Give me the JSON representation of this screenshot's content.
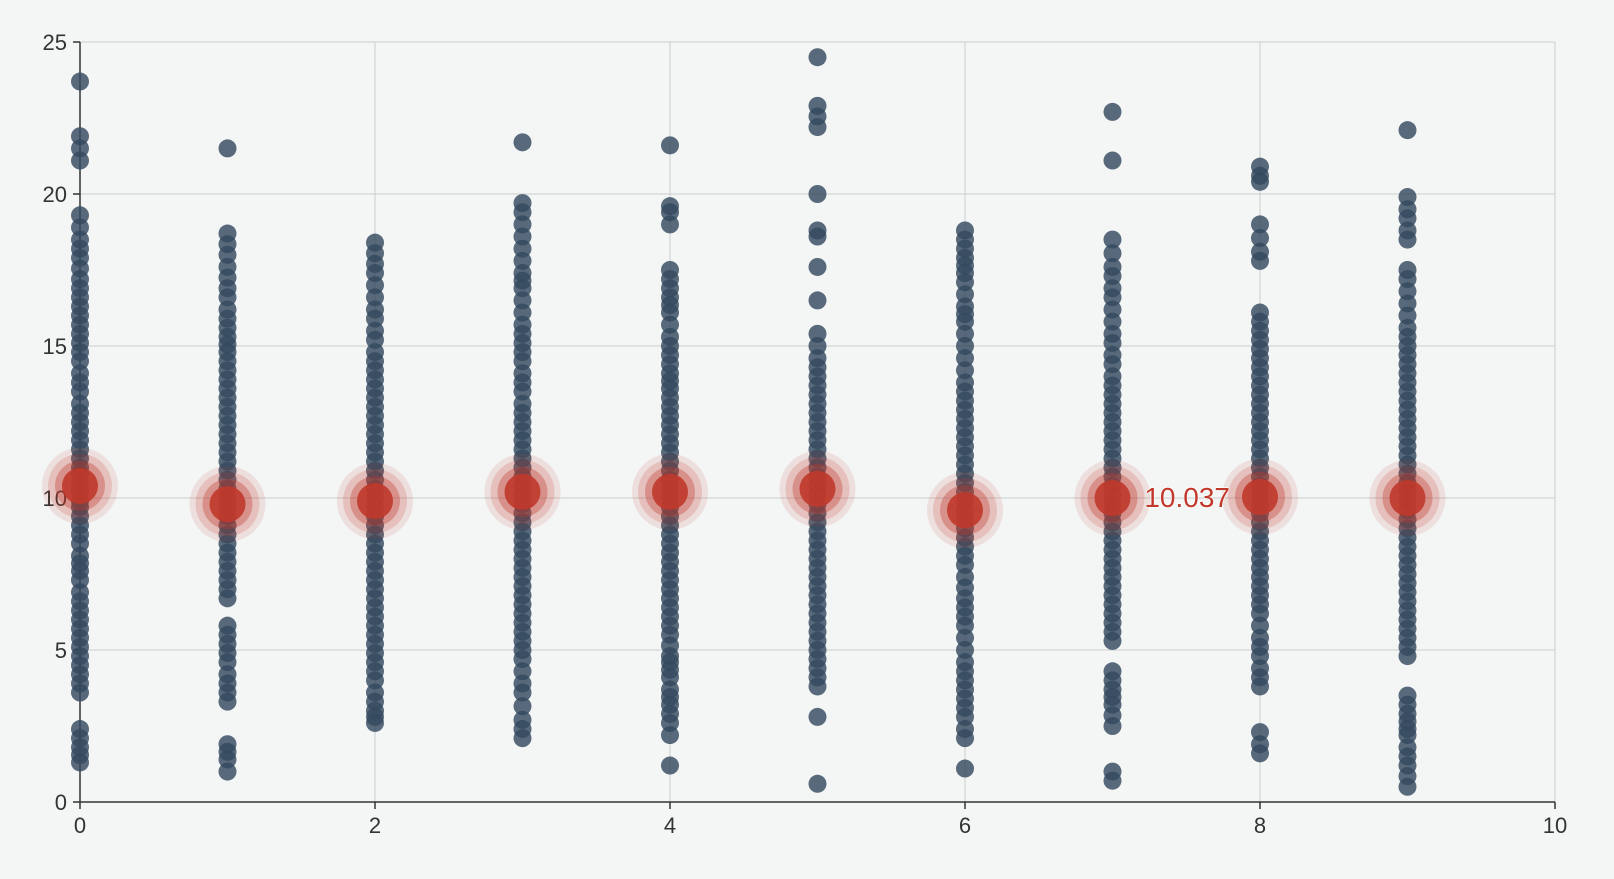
{
  "chart_data": {
    "type": "scatter",
    "title": "",
    "xlabel": "",
    "ylabel": "",
    "xlim": [
      0,
      10
    ],
    "ylim": [
      0,
      25
    ],
    "x_ticks": [
      "0",
      "2",
      "4",
      "6",
      "8",
      "10"
    ],
    "y_ticks": [
      "0",
      "5",
      "10",
      "15",
      "20",
      "25"
    ],
    "grid": true,
    "colors": {
      "points": "#34495e",
      "mean": "#c0392b",
      "grid": "#cccccc",
      "axis": "#333333",
      "background": "#f4f6f6"
    },
    "series": [
      {
        "type": "scatter",
        "x_categories": [
          0,
          1,
          2,
          3,
          4,
          5,
          6,
          7,
          8,
          9
        ],
        "y_values_per_x": [
          [
            23.7,
            21.9,
            21.1,
            19.3,
            18.5,
            17.9,
            17.2,
            16.6,
            16.3,
            16.0,
            15.7,
            15.4,
            14.8,
            14.5,
            14.1,
            13.8,
            13.5,
            13.1,
            12.8,
            12.5,
            12.2,
            11.9,
            11.6,
            11.3,
            11.0,
            10.8,
            10.5,
            10.2,
            9.9,
            9.7,
            9.4,
            9.1,
            8.8,
            8.5,
            8.1,
            7.6,
            7.3,
            6.9,
            6.6,
            6.3,
            6.0,
            5.7,
            5.4,
            5.1,
            4.8,
            4.5,
            4.2,
            3.9,
            3.6,
            2.4,
            1.8,
            1.3
          ],
          [
            21.5,
            18.7,
            18.0,
            17.6,
            16.9,
            16.6,
            16.2,
            15.6,
            15.3,
            14.8,
            14.5,
            14.2,
            13.9,
            13.6,
            13.3,
            13.0,
            12.7,
            12.4,
            12.1,
            11.8,
            11.5,
            11.2,
            10.9,
            10.6,
            10.3,
            10.0,
            9.7,
            9.4,
            9.1,
            8.8,
            8.5,
            8.2,
            7.9,
            7.6,
            7.3,
            7.0,
            6.7,
            5.8,
            5.5,
            5.2,
            4.9,
            4.6,
            4.2,
            3.9,
            3.6,
            3.3,
            1.9,
            1.4,
            1.0
          ],
          [
            18.4,
            17.7,
            17.4,
            17.0,
            16.6,
            16.2,
            15.9,
            15.5,
            15.2,
            14.8,
            14.5,
            14.2,
            13.9,
            13.6,
            13.3,
            13.0,
            12.7,
            12.4,
            12.1,
            11.8,
            11.5,
            11.2,
            10.9,
            10.6,
            10.3,
            10.0,
            9.7,
            9.4,
            9.1,
            8.8,
            8.5,
            8.2,
            7.9,
            7.6,
            7.3,
            7.0,
            6.7,
            6.4,
            6.1,
            5.8,
            5.5,
            5.2,
            4.9,
            4.6,
            4.3,
            4.0,
            3.6,
            3.0,
            2.8,
            2.6
          ],
          [
            21.7,
            19.7,
            19.4,
            18.6,
            18.2,
            17.8,
            17.4,
            16.9,
            16.5,
            16.1,
            15.7,
            15.4,
            15.1,
            14.8,
            14.5,
            14.1,
            13.8,
            13.5,
            13.1,
            12.8,
            12.5,
            12.2,
            11.9,
            11.6,
            11.3,
            11.0,
            10.7,
            10.4,
            10.1,
            9.8,
            9.5,
            9.2,
            8.9,
            8.6,
            8.3,
            8.0,
            7.7,
            7.4,
            7.1,
            6.8,
            6.5,
            6.2,
            5.9,
            5.6,
            5.3,
            5.0,
            4.7,
            3.9,
            3.6,
            2.7,
            2.4,
            2.1
          ],
          [
            21.6,
            19.6,
            19.4,
            19.0,
            17.5,
            17.2,
            16.9,
            16.6,
            16.1,
            15.7,
            15.3,
            15.0,
            14.7,
            14.4,
            14.1,
            13.6,
            13.3,
            13.0,
            12.7,
            12.4,
            12.1,
            11.8,
            11.5,
            11.2,
            10.9,
            10.6,
            10.3,
            10.0,
            9.7,
            9.4,
            9.1,
            8.8,
            8.5,
            8.2,
            7.9,
            7.6,
            7.3,
            7.0,
            6.7,
            6.4,
            6.1,
            5.8,
            5.5,
            4.8,
            4.6,
            4.1,
            3.7,
            3.2,
            2.6,
            2.2,
            1.2
          ],
          [
            24.5,
            22.9,
            22.2,
            20.0,
            18.8,
            18.6,
            17.6,
            16.5,
            15.4,
            15.0,
            14.6,
            14.3,
            14.0,
            13.7,
            13.4,
            13.1,
            12.8,
            12.5,
            12.2,
            11.9,
            11.6,
            11.3,
            11.0,
            10.7,
            10.4,
            10.1,
            9.8,
            9.5,
            9.2,
            8.9,
            8.6,
            8.3,
            8.0,
            7.7,
            7.4,
            7.1,
            6.8,
            6.5,
            6.2,
            5.9,
            5.6,
            5.3,
            5.0,
            4.7,
            4.4,
            4.1,
            3.8,
            2.8,
            0.6
          ],
          [
            18.8,
            18.5,
            18.2,
            17.9,
            17.4,
            17.1,
            16.7,
            16.3,
            15.8,
            15.4,
            15.0,
            14.6,
            14.2,
            13.8,
            13.5,
            13.2,
            12.9,
            12.6,
            12.3,
            12.0,
            11.7,
            11.4,
            11.1,
            10.8,
            10.5,
            10.2,
            9.9,
            9.6,
            9.3,
            9.0,
            8.7,
            8.4,
            7.8,
            7.4,
            6.7,
            6.4,
            6.1,
            5.8,
            5.4,
            5.0,
            4.6,
            4.3,
            4.0,
            3.7,
            3.4,
            3.1,
            2.8,
            2.4,
            2.1,
            1.1
          ],
          [
            22.7,
            21.1,
            18.5,
            17.6,
            17.3,
            16.9,
            16.6,
            16.2,
            15.8,
            15.4,
            15.1,
            14.7,
            14.4,
            14.0,
            13.7,
            13.4,
            13.1,
            12.8,
            12.5,
            12.2,
            11.9,
            11.6,
            11.3,
            11.0,
            10.7,
            10.4,
            10.1,
            9.8,
            9.5,
            9.2,
            8.9,
            8.6,
            8.3,
            8.0,
            7.7,
            7.4,
            7.1,
            6.8,
            6.5,
            6.2,
            5.9,
            5.6,
            5.3,
            4.3,
            4.0,
            3.7,
            3.2,
            2.5,
            1.0,
            0.7
          ],
          [
            20.9,
            20.6,
            20.4,
            19.0,
            18.1,
            17.8,
            16.1,
            15.8,
            15.5,
            15.2,
            14.9,
            14.6,
            14.3,
            14.0,
            13.7,
            13.4,
            13.1,
            12.8,
            12.5,
            12.2,
            11.9,
            11.6,
            11.3,
            11.0,
            10.7,
            10.4,
            10.1,
            9.8,
            9.5,
            9.2,
            8.9,
            8.6,
            8.3,
            8.0,
            7.7,
            7.4,
            7.1,
            6.8,
            6.5,
            6.2,
            5.8,
            5.4,
            5.1,
            4.8,
            4.4,
            3.8,
            2.3,
            1.9,
            1.6
          ],
          [
            22.1,
            19.9,
            19.5,
            19.2,
            18.8,
            18.5,
            17.5,
            17.2,
            16.8,
            16.4,
            16.0,
            15.6,
            15.3,
            15.0,
            14.7,
            14.4,
            14.1,
            13.8,
            13.5,
            13.2,
            12.9,
            12.6,
            12.3,
            12.0,
            11.7,
            11.4,
            11.1,
            10.8,
            10.5,
            10.2,
            9.9,
            9.6,
            9.3,
            9.0,
            8.7,
            8.4,
            8.1,
            7.8,
            7.5,
            7.2,
            6.9,
            6.6,
            6.3,
            6.0,
            5.7,
            5.4,
            5.1,
            4.8,
            3.5,
            2.9,
            2.4,
            2.2,
            1.8,
            1.5,
            1.2,
            0.5
          ]
        ]
      },
      {
        "type": "scatter",
        "x": [
          0,
          1,
          2,
          3,
          4,
          5,
          6,
          7,
          8,
          9
        ],
        "y": [
          10.4,
          9.8,
          9.9,
          10.2,
          10.2,
          10.3,
          9.6,
          10.0,
          10.037,
          10.0
        ]
      }
    ],
    "annotations": [
      {
        "x": 8,
        "y": 10.037,
        "text": "10.037"
      }
    ]
  }
}
